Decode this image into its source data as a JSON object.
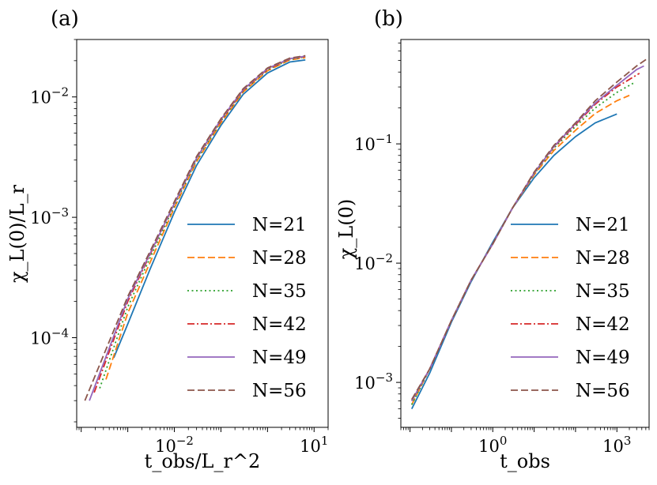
{
  "chart_data": [
    {
      "type": "line",
      "panel_label": "(a)",
      "xlabel": "t_obs/L_r^2",
      "ylabel": "χ_L(0)/L_r",
      "xscale": "log",
      "yscale": "log",
      "xlim": [
        8e-05,
        20
      ],
      "ylim": [
        1.8e-05,
        0.03
      ],
      "xticks": [
        {
          "value": 0.01,
          "base": "10",
          "exp": "−2"
        },
        {
          "value": 10,
          "base": "10",
          "exp": "1"
        }
      ],
      "yticks": [
        {
          "value": 0.0001,
          "base": "10",
          "exp": "−4"
        },
        {
          "value": 0.001,
          "base": "10",
          "exp": "−3"
        },
        {
          "value": 0.01,
          "base": "10",
          "exp": "−2"
        }
      ],
      "grid": false,
      "legend_position": "lower-right",
      "series": [
        {
          "name": "N=21",
          "color": "#1f77b4",
          "dash": "solid",
          "x": [
            0.0005,
            0.001,
            0.003,
            0.01,
            0.03,
            0.1,
            0.3,
            1,
            3,
            6.5
          ],
          "y": [
            6.8e-05,
            0.00013,
            0.00037,
            0.0011,
            0.0027,
            0.0058,
            0.0105,
            0.0158,
            0.0195,
            0.0203
          ]
        },
        {
          "name": "N=28",
          "color": "#ff7f0e",
          "dash": "dashed",
          "x": [
            0.00034,
            0.001,
            0.003,
            0.01,
            0.03,
            0.1,
            0.3,
            1,
            3,
            6.5
          ],
          "y": [
            4.5e-05,
            0.00016,
            0.00042,
            0.0012,
            0.0029,
            0.0061,
            0.011,
            0.0165,
            0.0203,
            0.0212
          ]
        },
        {
          "name": "N=35",
          "color": "#2ca02c",
          "dash": "dotted",
          "x": [
            0.00025,
            0.001,
            0.003,
            0.01,
            0.03,
            0.1,
            0.3,
            1,
            3,
            6.5
          ],
          "y": [
            3.8e-05,
            0.00018,
            0.00046,
            0.00125,
            0.003,
            0.0063,
            0.0112,
            0.0168,
            0.0205,
            0.0215
          ]
        },
        {
          "name": "N=42",
          "color": "#d62728",
          "dash": "dashdot",
          "x": [
            0.00019,
            0.001,
            0.003,
            0.01,
            0.03,
            0.1,
            0.3,
            1,
            3,
            6.5
          ],
          "y": [
            3.5e-05,
            0.0002,
            0.00049,
            0.0013,
            0.0031,
            0.0064,
            0.0114,
            0.017,
            0.0207,
            0.0217
          ]
        },
        {
          "name": "N=49",
          "color": "#9467bd",
          "dash": "solid",
          "x": [
            0.00015,
            0.001,
            0.003,
            0.01,
            0.03,
            0.1,
            0.3,
            1,
            3,
            6.5
          ],
          "y": [
            3e-05,
            0.00021,
            0.0005,
            0.0013,
            0.0031,
            0.0065,
            0.0115,
            0.0172,
            0.0208,
            0.0218
          ]
        },
        {
          "name": "N=56",
          "color": "#8c564b",
          "dash": "dashed",
          "x": [
            0.00012,
            0.001,
            0.003,
            0.01,
            0.03,
            0.1,
            0.3,
            1,
            3,
            6.5
          ],
          "y": [
            3e-05,
            0.00022,
            0.00052,
            0.00135,
            0.0032,
            0.0066,
            0.0117,
            0.0174,
            0.021,
            0.022
          ]
        }
      ]
    },
    {
      "type": "line",
      "panel_label": "(b)",
      "xlabel": "t_obs",
      "ylabel": "χ_L(0)",
      "xscale": "log",
      "yscale": "log",
      "xlim": [
        0.006,
        6000
      ],
      "ylim": [
        0.00042,
        0.75
      ],
      "xticks": [
        {
          "value": 1,
          "base": "10",
          "exp": "0"
        },
        {
          "value": 1000,
          "base": "10",
          "exp": "3"
        }
      ],
      "yticks": [
        {
          "value": 0.001,
          "base": "10",
          "exp": "−3"
        },
        {
          "value": 0.01,
          "base": "10",
          "exp": "−2"
        },
        {
          "value": 0.1,
          "base": "10",
          "exp": "−1"
        }
      ],
      "grid": false,
      "legend_position": "lower-right",
      "series": [
        {
          "name": "N=21",
          "color": "#1f77b4",
          "dash": "solid",
          "x": [
            0.011,
            0.03,
            0.1,
            0.3,
            1,
            3,
            10,
            30,
            100,
            300,
            1000
          ],
          "y": [
            0.0006,
            0.0012,
            0.0032,
            0.007,
            0.015,
            0.029,
            0.052,
            0.08,
            0.115,
            0.15,
            0.178
          ]
        },
        {
          "name": "N=28",
          "color": "#ff7f0e",
          "dash": "dashed",
          "x": [
            0.011,
            0.03,
            0.1,
            0.3,
            1,
            3,
            10,
            30,
            100,
            300,
            1000,
            2000
          ],
          "y": [
            0.00065,
            0.0013,
            0.0033,
            0.0072,
            0.0145,
            0.029,
            0.055,
            0.088,
            0.13,
            0.18,
            0.23,
            0.255
          ]
        },
        {
          "name": "N=35",
          "color": "#2ca02c",
          "dash": "dotted",
          "x": [
            0.011,
            0.03,
            0.1,
            0.3,
            1,
            3,
            10,
            30,
            100,
            300,
            1000,
            2800
          ],
          "y": [
            0.00065,
            0.0013,
            0.0033,
            0.0072,
            0.0145,
            0.029,
            0.056,
            0.092,
            0.14,
            0.2,
            0.27,
            0.33
          ]
        },
        {
          "name": "N=42",
          "color": "#d62728",
          "dash": "dashdot",
          "x": [
            0.011,
            0.03,
            0.1,
            0.3,
            1,
            3,
            10,
            30,
            100,
            300,
            1000,
            3500
          ],
          "y": [
            0.0007,
            0.0013,
            0.0033,
            0.0072,
            0.0145,
            0.029,
            0.057,
            0.094,
            0.145,
            0.215,
            0.3,
            0.39
          ]
        },
        {
          "name": "N=49",
          "color": "#9467bd",
          "dash": "solid",
          "x": [
            0.011,
            0.03,
            0.1,
            0.3,
            1,
            3,
            10,
            30,
            100,
            300,
            1000,
            3000,
            4500
          ],
          "y": [
            0.0007,
            0.0013,
            0.0033,
            0.0072,
            0.0145,
            0.029,
            0.057,
            0.095,
            0.148,
            0.22,
            0.31,
            0.42,
            0.45
          ]
        },
        {
          "name": "N=56",
          "color": "#8c564b",
          "dash": "dashed",
          "x": [
            0.011,
            0.03,
            0.1,
            0.3,
            1,
            3,
            10,
            30,
            100,
            300,
            1000,
            3000,
            5500
          ],
          "y": [
            0.00072,
            0.0013,
            0.0033,
            0.0072,
            0.0145,
            0.029,
            0.058,
            0.097,
            0.15,
            0.23,
            0.33,
            0.45,
            0.52
          ]
        }
      ]
    }
  ]
}
